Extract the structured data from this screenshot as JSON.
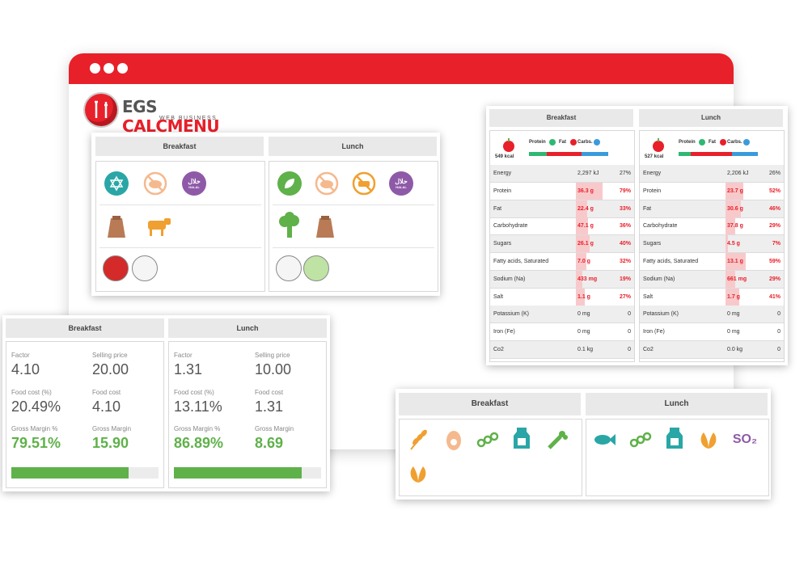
{
  "brand": {
    "name_a": "EGS ",
    "name_b": "CALCMENU",
    "sub": "WEB BUSINESS"
  },
  "diet_card": {
    "columns": [
      "Breakfast",
      "Lunch"
    ],
    "breakfast_icons": [
      "kosher-icon",
      "no-pork-icon",
      "halal-icon",
      "flour-sack-icon",
      "cow-icon"
    ],
    "lunch_icons": [
      "vegetarian-icon",
      "no-pork-icon",
      "no-beef-icon",
      "halal-icon",
      "broccoli-icon",
      "flour-sack-icon"
    ],
    "halal_text": "حلال",
    "halal_sub": "HALAL"
  },
  "nutrition_card": {
    "columns": [
      {
        "title": "Breakfast",
        "kcal": "549 kcal",
        "legend": [
          "Protein",
          "Fat",
          "Carbs."
        ],
        "macro_split": [
          0.22,
          0.44,
          0.34
        ],
        "rows": [
          {
            "name": "Energy",
            "amount": "2,297 kJ",
            "pct": "27%",
            "level": 0.27,
            "red": false
          },
          {
            "name": "Protein",
            "amount": "36.3 g",
            "pct": "79%",
            "level": 0.79,
            "red": true
          },
          {
            "name": "Fat",
            "amount": "22.4 g",
            "pct": "33%",
            "level": 0.33,
            "red": true
          },
          {
            "name": "Carbohydrate",
            "amount": "47.1 g",
            "pct": "36%",
            "level": 0.36,
            "red": true
          },
          {
            "name": "Sugars",
            "amount": "26.1 g",
            "pct": "40%",
            "level": 0.4,
            "red": true
          },
          {
            "name": "Fatty acids, Saturated",
            "amount": "7.0 g",
            "pct": "32%",
            "level": 0.32,
            "red": true
          },
          {
            "name": "Sodium (Na)",
            "amount": "433 mg",
            "pct": "19%",
            "level": 0.19,
            "red": true
          },
          {
            "name": "Salt",
            "amount": "1.1 g",
            "pct": "27%",
            "level": 0.27,
            "red": true
          },
          {
            "name": "Potassium (K)",
            "amount": "0 mg",
            "pct": "0",
            "level": 0,
            "red": false
          },
          {
            "name": "Iron (Fe)",
            "amount": "0 mg",
            "pct": "0",
            "level": 0,
            "red": false
          },
          {
            "name": "Co2",
            "amount": "0.1 kg",
            "pct": "0",
            "level": 0,
            "red": false
          }
        ]
      },
      {
        "title": "Lunch",
        "kcal": "527 kcal",
        "legend": [
          "Protein",
          "Fat",
          "Carbs."
        ],
        "macro_split": [
          0.15,
          0.52,
          0.33
        ],
        "rows": [
          {
            "name": "Energy",
            "amount": "2,206 kJ",
            "pct": "26%",
            "level": 0.26,
            "red": false
          },
          {
            "name": "Protein",
            "amount": "23.7 g",
            "pct": "52%",
            "level": 0.52,
            "red": true
          },
          {
            "name": "Fat",
            "amount": "30.6 g",
            "pct": "46%",
            "level": 0.46,
            "red": true
          },
          {
            "name": "Carbohydrate",
            "amount": "37.8 g",
            "pct": "29%",
            "level": 0.29,
            "red": true
          },
          {
            "name": "Sugars",
            "amount": "4.5 g",
            "pct": "7%",
            "level": 0.07,
            "red": true
          },
          {
            "name": "Fatty acids, Saturated",
            "amount": "13.1 g",
            "pct": "59%",
            "level": 0.59,
            "red": true
          },
          {
            "name": "Sodium (Na)",
            "amount": "661 mg",
            "pct": "29%",
            "level": 0.29,
            "red": true
          },
          {
            "name": "Salt",
            "amount": "1.7 g",
            "pct": "41%",
            "level": 0.41,
            "red": true
          },
          {
            "name": "Potassium (K)",
            "amount": "0 mg",
            "pct": "0",
            "level": 0,
            "red": false
          },
          {
            "name": "Iron (Fe)",
            "amount": "0 mg",
            "pct": "0",
            "level": 0,
            "red": false
          },
          {
            "name": "Co2",
            "amount": "0.0 kg",
            "pct": "0",
            "level": 0,
            "red": false
          }
        ]
      }
    ]
  },
  "cost_card": {
    "columns": [
      {
        "title": "Breakfast",
        "factor_label": "Factor",
        "factor": "4.10",
        "selling_label": "Selling price",
        "selling": "20.00",
        "fc_pct_label": "Food cost (%)",
        "fc_pct": "20.49%",
        "fc_label": "Food cost",
        "fc": "4.10",
        "gm_pct_label": "Gross Margin %",
        "gm_pct": "79.51%",
        "gm_label": "Gross Margin",
        "gm": "15.90",
        "margin_level": 0.7951
      },
      {
        "title": "Lunch",
        "factor_label": "Factor",
        "factor": "1.31",
        "selling_label": "Selling price",
        "selling": "10.00",
        "fc_pct_label": "Food cost (%)",
        "fc_pct": "13.11%",
        "fc_label": "Food cost",
        "fc": "1.31",
        "gm_pct_label": "Gross Margin %",
        "gm_pct": "86.89%",
        "gm_label": "Gross Margin",
        "gm": "8.69",
        "margin_level": 0.8689
      }
    ]
  },
  "allergen_card": {
    "columns": [
      "Breakfast",
      "Lunch"
    ],
    "breakfast_icons": [
      "wheat-icon",
      "egg-icon",
      "soy-icon",
      "milk-icon",
      "celery-icon",
      "nuts-icon"
    ],
    "lunch_icons": [
      "fish-icon",
      "soy-icon",
      "milk-icon",
      "nuts-icon",
      "sulphites-icon"
    ],
    "so2_text": "SO₂"
  },
  "colors": {
    "brand_red": "#e8202a",
    "green": "#5fb14a",
    "teal": "#2aa6a6",
    "purple": "#8e5aa8",
    "orange": "#f0a030",
    "protein": "#2eb872",
    "fat": "#e8202a",
    "carbs": "#3a9bdc"
  }
}
